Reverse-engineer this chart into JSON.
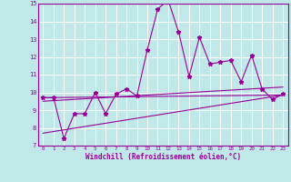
{
  "background_color": "#c0e8e8",
  "grid_color": "#ffffff",
  "line_color": "#990099",
  "xlabel": "Windchill (Refroidissement éolien,°C)",
  "xlim": [
    -0.5,
    23.5
  ],
  "ylim": [
    7,
    15
  ],
  "yticks": [
    7,
    8,
    9,
    10,
    11,
    12,
    13,
    14,
    15
  ],
  "xticks": [
    0,
    1,
    2,
    3,
    4,
    5,
    6,
    7,
    8,
    9,
    10,
    11,
    12,
    13,
    14,
    15,
    16,
    17,
    18,
    19,
    20,
    21,
    22,
    23
  ],
  "series1_x": [
    0,
    1,
    2,
    3,
    4,
    5,
    6,
    7,
    8,
    9,
    10,
    11,
    12,
    13,
    14,
    15,
    16,
    17,
    18,
    19,
    20,
    21,
    22,
    23
  ],
  "series1_y": [
    9.7,
    9.7,
    7.4,
    8.8,
    8.8,
    10.0,
    8.8,
    9.9,
    10.2,
    9.8,
    12.4,
    14.7,
    15.2,
    13.4,
    10.9,
    13.1,
    11.6,
    11.7,
    11.8,
    10.6,
    12.1,
    10.2,
    9.6,
    9.9
  ],
  "series2_x": [
    0,
    23
  ],
  "series2_y": [
    9.7,
    9.85
  ],
  "series3_x": [
    0,
    23
  ],
  "series3_y": [
    9.5,
    10.3
  ],
  "series4_x": [
    0,
    23
  ],
  "series4_y": [
    7.7,
    9.85
  ]
}
